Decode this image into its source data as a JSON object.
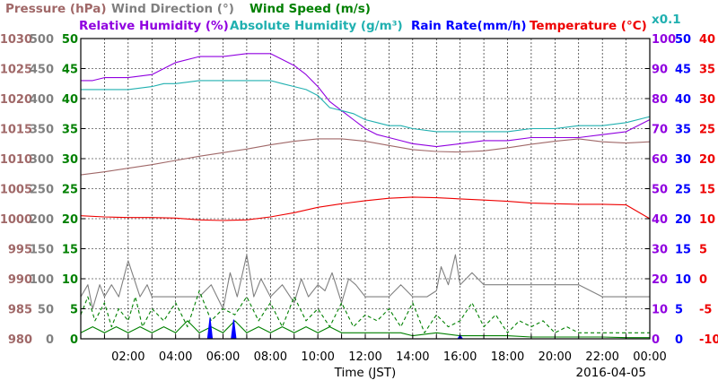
{
  "chart_data": {
    "type": "line",
    "date": "2016-04-05",
    "xlabel": "Time (JST)",
    "x_ticks": [
      "02:00",
      "04:00",
      "06:00",
      "08:00",
      "10:00",
      "12:00",
      "14:00",
      "16:00",
      "18:00",
      "20:00",
      "22:00",
      "00:00"
    ],
    "x_range_hours": [
      0,
      24
    ],
    "grid": true,
    "series_labels": {
      "pressure": "Pressure (hPa)",
      "wind_direction": "Wind Direction (°)",
      "wind_speed": "Wind Speed (m/s)",
      "relative_humidity": "Relative Humidity (%)",
      "absolute_humidity": "Absolute Humidity (g/m³)",
      "rain_rate": "Rain Rate(mm/h)",
      "temperature": "Temperature (°C)",
      "abs_humidity_scale_note": "x0.1"
    },
    "colors": {
      "pressure": "#a06868",
      "wind_direction": "#808080",
      "wind_speed": "#008000",
      "relative_humidity": "#9000e0",
      "absolute_humidity": "#20b0b0",
      "rain_rate": "#0000ff",
      "temperature": "#ee0000"
    },
    "axes": {
      "pressure": {
        "range": [
          980,
          1030
        ],
        "ticks": [
          "980",
          "985",
          "990",
          "995",
          "1000",
          "1005",
          "1010",
          "1015",
          "1020",
          "1025",
          "1030"
        ]
      },
      "wind_direction": {
        "range": [
          0,
          500
        ],
        "ticks": [
          "0",
          "50",
          "100",
          "150",
          "200",
          "250",
          "300",
          "350",
          "400",
          "450",
          "500"
        ]
      },
      "wind_speed": {
        "range": [
          0,
          50
        ],
        "ticks": [
          "0",
          "5",
          "10",
          "15",
          "20",
          "25",
          "30",
          "35",
          "40",
          "45",
          "50"
        ]
      },
      "humidity": {
        "range": [
          0,
          100
        ],
        "ticks": [
          "0",
          "10",
          "20",
          "30",
          "40",
          "50",
          "60",
          "70",
          "80",
          "90",
          "100"
        ]
      },
      "rain_rate": {
        "range": [
          0,
          50
        ],
        "ticks": [
          "0",
          "5",
          "10",
          "15",
          "20",
          "25",
          "30",
          "35",
          "40",
          "45",
          "50"
        ]
      },
      "temperature": {
        "range": [
          -10,
          40
        ],
        "ticks": [
          "-10",
          "-5",
          "0",
          "5",
          "10",
          "15",
          "20",
          "25",
          "30",
          "35",
          "40"
        ]
      }
    },
    "series": [
      {
        "key": "relative_humidity",
        "axis": "humidity",
        "x": [
          0,
          0.5,
          1,
          2,
          3,
          3.5,
          4,
          5,
          6,
          7,
          8,
          8.5,
          9,
          9.5,
          10,
          10.5,
          11,
          11.5,
          12,
          12.5,
          13,
          13.5,
          14,
          15,
          16,
          17,
          18,
          19,
          20,
          21,
          22,
          23,
          24
        ],
        "values": [
          86,
          86,
          87,
          87,
          88,
          90,
          92,
          94,
          94,
          95,
          95,
          93,
          91,
          88,
          84,
          79,
          76,
          73,
          70,
          68,
          67,
          66,
          65,
          64,
          65,
          66,
          66,
          67,
          67,
          67,
          68,
          69,
          73
        ]
      },
      {
        "key": "absolute_humidity",
        "axis": "humidity",
        "x": [
          0,
          0.5,
          1,
          2,
          3,
          3.5,
          4,
          5,
          6,
          7,
          8,
          8.5,
          9,
          9.5,
          10,
          10.5,
          11,
          11.5,
          12,
          12.5,
          13,
          13.5,
          14,
          15,
          16,
          17,
          18,
          19,
          20,
          21,
          22,
          23,
          24
        ],
        "values": [
          83,
          83,
          83,
          83,
          84,
          85,
          85,
          86,
          86,
          86,
          86,
          85,
          84,
          83,
          81,
          77,
          76,
          75,
          73,
          72,
          71,
          71,
          70,
          69,
          69,
          69,
          69,
          70,
          70,
          71,
          71,
          72,
          74
        ]
      },
      {
        "key": "pressure",
        "axis": "pressure",
        "x": [
          0,
          1,
          2,
          3,
          4,
          5,
          6,
          7,
          8,
          9,
          10,
          11,
          12,
          13,
          14,
          15,
          16,
          17,
          18,
          19,
          20,
          21,
          22,
          23,
          24
        ],
        "values": [
          1007.3,
          1007.8,
          1008.4,
          1009.0,
          1009.7,
          1010.4,
          1011.0,
          1011.6,
          1012.3,
          1012.9,
          1013.3,
          1013.3,
          1012.9,
          1012.2,
          1011.5,
          1011.2,
          1011.1,
          1011.3,
          1011.8,
          1012.4,
          1012.9,
          1013.3,
          1012.8,
          1012.6,
          1012.8
        ]
      },
      {
        "key": "temperature",
        "axis": "temperature",
        "x": [
          0,
          1,
          2,
          3,
          4,
          5,
          6,
          7,
          8,
          9,
          10,
          11,
          12,
          13,
          14,
          15,
          16,
          17,
          18,
          19,
          20,
          21,
          22,
          23,
          24
        ],
        "values": [
          10.5,
          10.3,
          10.2,
          10.2,
          10.1,
          9.8,
          9.7,
          9.8,
          10.3,
          11.0,
          11.9,
          12.5,
          13.0,
          13.4,
          13.6,
          13.5,
          13.3,
          13.1,
          12.9,
          12.6,
          12.5,
          12.4,
          12.4,
          12.3,
          10.0
        ]
      },
      {
        "key": "wind_direction",
        "axis": "wind_direction",
        "x": [
          0,
          0.3,
          0.5,
          0.8,
          1,
          1.3,
          1.6,
          2,
          2.5,
          2.8,
          3,
          3.5,
          4,
          4.5,
          5,
          5.5,
          6,
          6.3,
          6.6,
          7,
          7.3,
          7.6,
          8,
          8.5,
          9,
          9.3,
          9.6,
          10,
          10.3,
          10.6,
          11,
          11.3,
          11.6,
          12,
          12.5,
          13,
          13.5,
          14,
          14.3,
          14.6,
          15,
          15.2,
          15.5,
          15.8,
          16,
          16.5,
          17,
          17.5,
          18,
          19,
          20,
          21,
          22,
          23,
          24
        ],
        "values": [
          70,
          90,
          50,
          90,
          70,
          90,
          70,
          130,
          70,
          90,
          70,
          70,
          70,
          70,
          70,
          90,
          50,
          110,
          70,
          140,
          70,
          100,
          70,
          90,
          60,
          100,
          70,
          90,
          80,
          110,
          60,
          100,
          90,
          70,
          70,
          70,
          90,
          70,
          70,
          70,
          80,
          120,
          90,
          140,
          90,
          110,
          90,
          90,
          90,
          90,
          90,
          90,
          70,
          70,
          70
        ]
      },
      {
        "key": "wind_speed_gust",
        "axis": "wind_speed",
        "x": [
          0,
          0.3,
          0.6,
          1,
          1.3,
          1.6,
          2,
          2.3,
          2.6,
          3,
          3.5,
          4,
          4.5,
          5,
          5.5,
          6,
          6.5,
          7,
          7.5,
          8,
          8.5,
          9,
          9.5,
          10,
          10.5,
          11,
          11.5,
          12,
          12.5,
          13,
          13.5,
          14,
          14.5,
          15,
          15.5,
          16,
          16.5,
          17,
          17.5,
          18,
          18.5,
          19,
          19.5,
          20,
          20.5,
          21,
          22,
          23,
          24
        ],
        "values": [
          4,
          7,
          3,
          6,
          2,
          5,
          3,
          7,
          2,
          5,
          3,
          6,
          2,
          8,
          3,
          5,
          4,
          7,
          3,
          6,
          2,
          7,
          3,
          5,
          2,
          6,
          2,
          4,
          3,
          5,
          2,
          6,
          1,
          4,
          2,
          3,
          6,
          2,
          4,
          1,
          3,
          2,
          3,
          1,
          2,
          1,
          1,
          1,
          1
        ]
      },
      {
        "key": "wind_speed",
        "axis": "wind_speed",
        "x": [
          0,
          0.5,
          1,
          1.5,
          2,
          2.5,
          3,
          3.5,
          4,
          4.5,
          5,
          5.5,
          6,
          6.5,
          7,
          7.5,
          8,
          8.5,
          9,
          9.5,
          10,
          10.5,
          11,
          11.5,
          12,
          12.5,
          13,
          13.5,
          14,
          15,
          16,
          17,
          18,
          19,
          20,
          21,
          22,
          23,
          24
        ],
        "values": [
          1,
          2,
          1,
          2,
          1,
          2,
          1,
          2,
          1,
          3,
          1,
          2,
          1,
          3,
          1,
          2,
          1,
          2,
          1,
          2,
          1,
          2,
          1,
          1,
          1,
          1,
          1,
          1,
          0.5,
          1,
          0.5,
          0.5,
          0.5,
          0.3,
          0.3,
          0.3,
          0.3,
          0.2,
          0.2
        ]
      },
      {
        "key": "rain_rate",
        "axis": "rain_rate",
        "x": [
          5.35,
          5.45,
          5.55,
          6.35,
          6.45,
          6.55,
          15.9,
          16.0,
          16.1
        ],
        "values": [
          0,
          3.5,
          0,
          0,
          3.2,
          0,
          0,
          0.6,
          0
        ]
      }
    ]
  }
}
